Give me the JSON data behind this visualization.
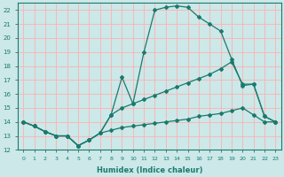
{
  "xlabel": "Humidex (Indice chaleur)",
  "bg_color": "#cce8e8",
  "line_color": "#1a7a6e",
  "grid_color": "#ffb0b0",
  "xlim": [
    -0.5,
    23.5
  ],
  "ylim": [
    12,
    22.5
  ],
  "xticks": [
    0,
    1,
    2,
    3,
    4,
    5,
    6,
    7,
    8,
    9,
    10,
    11,
    12,
    13,
    14,
    15,
    16,
    17,
    18,
    19,
    20,
    21,
    22,
    23
  ],
  "yticks": [
    12,
    13,
    14,
    15,
    16,
    17,
    18,
    19,
    20,
    21,
    22
  ],
  "series": [
    {
      "x": [
        0,
        1,
        2,
        3,
        4,
        5,
        6,
        7,
        8,
        9,
        10,
        11,
        12,
        13,
        14,
        15,
        16,
        17,
        18,
        19,
        20,
        21,
        22,
        23
      ],
      "y": [
        14,
        13.7,
        13.3,
        13.0,
        13.0,
        12.3,
        12.7,
        13.2,
        14.5,
        17.2,
        15.3,
        19.0,
        22.0,
        22.2,
        22.3,
        22.2,
        21.5,
        21.0,
        20.5,
        18.5,
        16.6,
        16.7,
        14.4,
        14.0
      ]
    },
    {
      "x": [
        0,
        1,
        2,
        3,
        4,
        5,
        6,
        7,
        8,
        9,
        10,
        11,
        12,
        13,
        14,
        15,
        16,
        17,
        18,
        19,
        20,
        21,
        22,
        23
      ],
      "y": [
        14,
        13.7,
        13.3,
        13.0,
        13.0,
        12.3,
        12.7,
        13.2,
        14.5,
        15.0,
        15.3,
        15.6,
        15.9,
        16.2,
        16.5,
        16.8,
        17.1,
        17.4,
        17.8,
        18.3,
        16.7,
        16.7,
        14.4,
        14.0
      ]
    },
    {
      "x": [
        0,
        1,
        2,
        3,
        4,
        5,
        6,
        7,
        8,
        9,
        10,
        11,
        12,
        13,
        14,
        15,
        16,
        17,
        18,
        19,
        20,
        21,
        22,
        23
      ],
      "y": [
        14,
        13.7,
        13.3,
        13.0,
        13.0,
        12.3,
        12.7,
        13.2,
        13.4,
        13.6,
        13.7,
        13.8,
        13.9,
        14.0,
        14.1,
        14.2,
        14.4,
        14.5,
        14.6,
        14.8,
        15.0,
        14.5,
        14.0,
        14.0
      ]
    }
  ]
}
